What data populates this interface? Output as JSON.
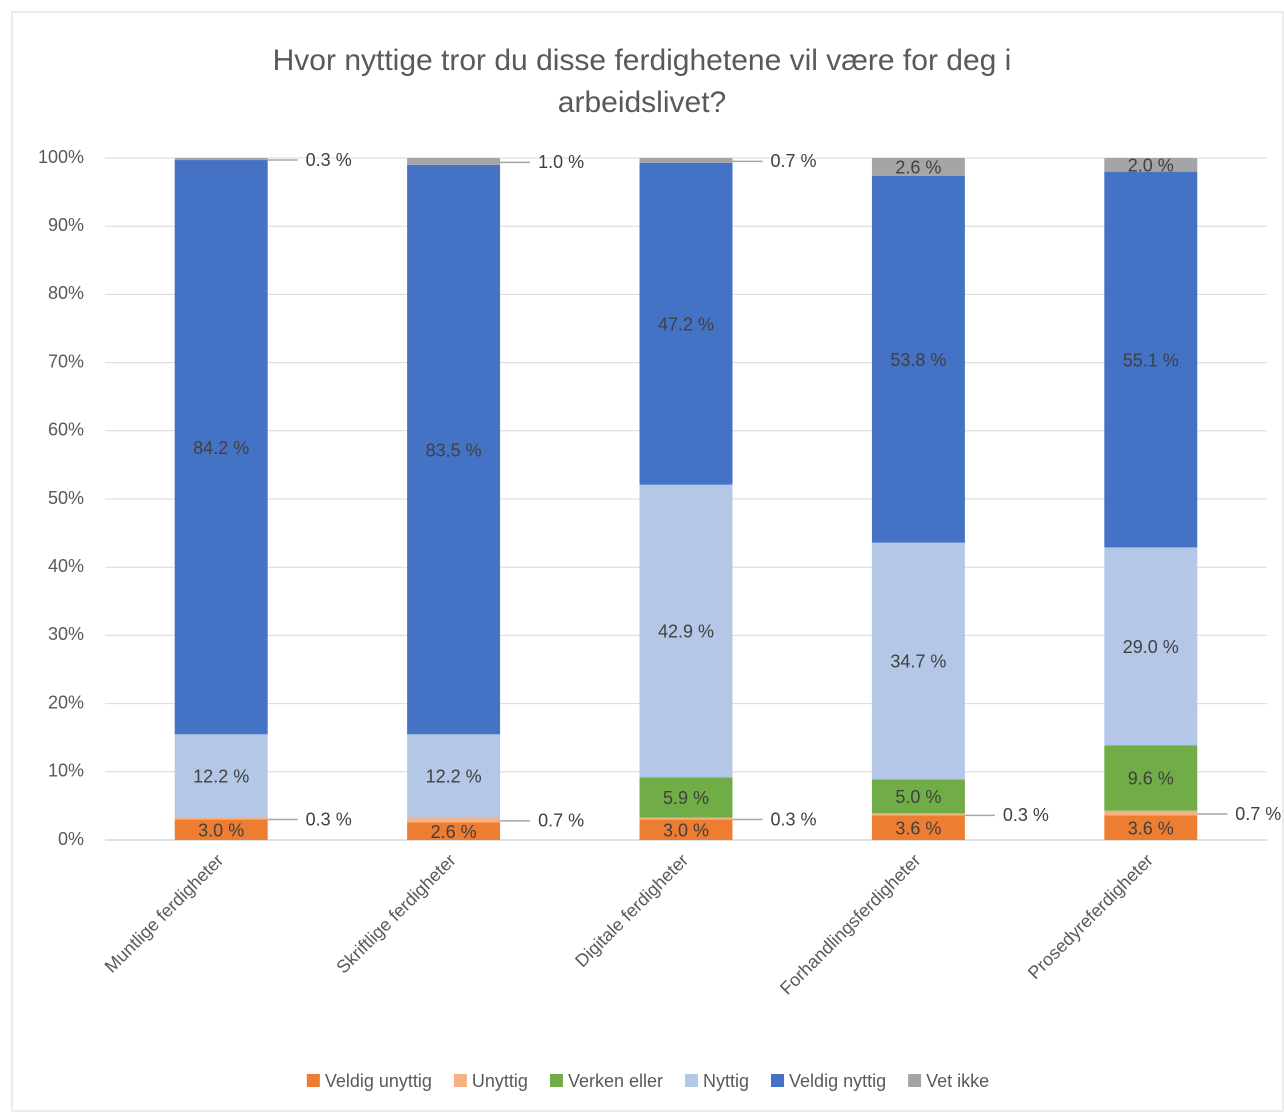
{
  "chart_data": {
    "type": "stacked_bar",
    "title": "Hvor nyttige tror du disse ferdighetene vil være for deg i arbeidslivet?",
    "categories": [
      "Muntlige ferdigheter",
      "Skriftlige ferdigheter",
      "Digitale ferdigheter",
      "Forhandlingsferdigheter",
      "Prosedyreferdigheter"
    ],
    "series": [
      {
        "name": "Veldig unyttig",
        "color": "#ED7D31",
        "values": [
          3.0,
          2.6,
          3.0,
          3.6,
          3.6
        ],
        "value_labels": [
          "3.0 %",
          "2.6 %",
          "3.0 %",
          "3.6 %",
          "3.6 %"
        ]
      },
      {
        "name": "Unyttig",
        "color": "#F4B183",
        "values": [
          0.3,
          0.7,
          0.3,
          0.3,
          0.7
        ],
        "value_labels": [
          "0.3 %",
          "0.7 %",
          "0.3 %",
          "0.3 %",
          "0.7 %"
        ]
      },
      {
        "name": "Verken eller",
        "color": "#70AD47",
        "values": [
          null,
          null,
          5.9,
          5.0,
          9.6
        ],
        "value_labels": [
          null,
          null,
          "5.9 %",
          "5.0 %",
          "9.6 %"
        ]
      },
      {
        "name": "Nyttig",
        "color": "#B4C7E7",
        "values": [
          12.2,
          12.2,
          42.9,
          34.7,
          29.0
        ],
        "value_labels": [
          "12.2 %",
          "12.2 %",
          "42.9 %",
          "34.7 %",
          "29.0 %"
        ]
      },
      {
        "name": "Veldig nyttig",
        "color": "#4472C4",
        "values": [
          84.2,
          83.5,
          47.2,
          53.8,
          55.1
        ],
        "value_labels": [
          "84.2 %",
          "83.5 %",
          "47.2 %",
          "53.8 %",
          "55.1 %"
        ]
      },
      {
        "name": "Vet ikke",
        "color": "#A5A5A5",
        "values": [
          0.3,
          1.0,
          0.7,
          2.6,
          2.0
        ],
        "value_labels": [
          "0.3 %",
          "1.0 %",
          "0.7 %",
          "2.6 %",
          "2.0 %"
        ]
      }
    ],
    "ylim": [
      0,
      100
    ],
    "yticks": [
      {
        "value": 0,
        "label": "0%"
      },
      {
        "value": 10,
        "label": "10%"
      },
      {
        "value": 20,
        "label": "20%"
      },
      {
        "value": 30,
        "label": "30%"
      },
      {
        "value": 40,
        "label": "40%"
      },
      {
        "value": 50,
        "label": "50%"
      },
      {
        "value": 60,
        "label": "60%"
      },
      {
        "value": 70,
        "label": "70%"
      },
      {
        "value": 80,
        "label": "80%"
      },
      {
        "value": 90,
        "label": "90%"
      },
      {
        "value": 100,
        "label": "100%"
      }
    ],
    "grid": true,
    "legend": "bottom"
  }
}
